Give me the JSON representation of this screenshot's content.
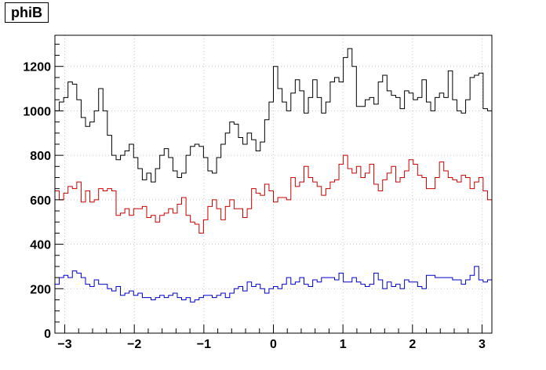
{
  "title": "phiB",
  "chart_data": {
    "type": "histogram",
    "title": "phiB",
    "xlabel": "",
    "ylabel": "",
    "xlim": [
      -3.1416,
      3.1416
    ],
    "ylim": [
      0,
      1340
    ],
    "bins": 100,
    "x_ticks": [
      -3,
      -2,
      -1,
      0,
      1,
      2,
      3
    ],
    "x_tick_labels": [
      "−3",
      "−2",
      "−1",
      "0",
      "1",
      "2",
      "3"
    ],
    "y_ticks": [
      0,
      200,
      400,
      600,
      800,
      1000,
      1200
    ],
    "y_tick_labels": [
      "0",
      "200",
      "400",
      "600",
      "800",
      "1000",
      "1200"
    ],
    "grid": true,
    "legend": false,
    "series": [
      {
        "color": "#000000",
        "values": [
          1000,
          1040,
          1060,
          1130,
          1120,
          1050,
          970,
          930,
          950,
          1000,
          1100,
          1000,
          890,
          800,
          780,
          800,
          820,
          850,
          790,
          740,
          690,
          720,
          680,
          740,
          800,
          830,
          790,
          730,
          700,
          720,
          800,
          840,
          850,
          840,
          790,
          730,
          720,
          790,
          850,
          900,
          950,
          940,
          880,
          850,
          900,
          870,
          820,
          860,
          960,
          1040,
          1200,
          1100,
          1040,
          1000,
          1080,
          1140,
          1090,
          990,
          1060,
          1140,
          1060,
          990,
          1040,
          1130,
          1150,
          1130,
          1240,
          1280,
          1200,
          1020,
          1020,
          1050,
          1060,
          1030,
          1130,
          1160,
          1090,
          1070,
          1060,
          1010,
          1090,
          1080,
          1050,
          1060,
          1140,
          1040,
          1000,
          1060,
          1080,
          1060,
          1180,
          1050,
          1000,
          990,
          1050,
          1150,
          1160,
          1170,
          1010,
          1000
        ]
      },
      {
        "color": "#cc0000",
        "values": [
          640,
          600,
          630,
          660,
          650,
          680,
          590,
          640,
          590,
          600,
          650,
          640,
          650,
          640,
          530,
          540,
          560,
          530,
          560,
          560,
          570,
          520,
          530,
          500,
          530,
          540,
          560,
          540,
          580,
          610,
          530,
          500,
          490,
          450,
          510,
          570,
          600,
          560,
          510,
          570,
          600,
          560,
          560,
          520,
          560,
          650,
          630,
          620,
          670,
          640,
          590,
          610,
          610,
          600,
          700,
          660,
          680,
          750,
          700,
          680,
          660,
          620,
          650,
          680,
          690,
          760,
          800,
          740,
          720,
          750,
          700,
          720,
          760,
          670,
          640,
          690,
          720,
          750,
          680,
          700,
          730,
          780,
          760,
          710,
          700,
          650,
          650,
          700,
          770,
          730,
          700,
          690,
          680,
          710,
          700,
          650,
          680,
          700,
          640,
          600
        ]
      },
      {
        "color": "#0000cc",
        "values": [
          220,
          250,
          260,
          250,
          280,
          270,
          250,
          220,
          210,
          240,
          220,
          220,
          200,
          190,
          210,
          170,
          180,
          190,
          170,
          180,
          160,
          160,
          150,
          160,
          170,
          160,
          170,
          180,
          160,
          150,
          160,
          140,
          150,
          160,
          170,
          170,
          160,
          170,
          180,
          160,
          180,
          200,
          210,
          190,
          230,
          210,
          220,
          200,
          180,
          200,
          210,
          200,
          220,
          250,
          220,
          230,
          250,
          220,
          210,
          240,
          230,
          250,
          250,
          250,
          240,
          270,
          230,
          230,
          250,
          230,
          220,
          210,
          220,
          270,
          240,
          200,
          230,
          210,
          220,
          200,
          240,
          230,
          230,
          210,
          200,
          260,
          260,
          250,
          250,
          250,
          250,
          240,
          240,
          220,
          240,
          260,
          300,
          240,
          230,
          240
        ]
      }
    ]
  }
}
